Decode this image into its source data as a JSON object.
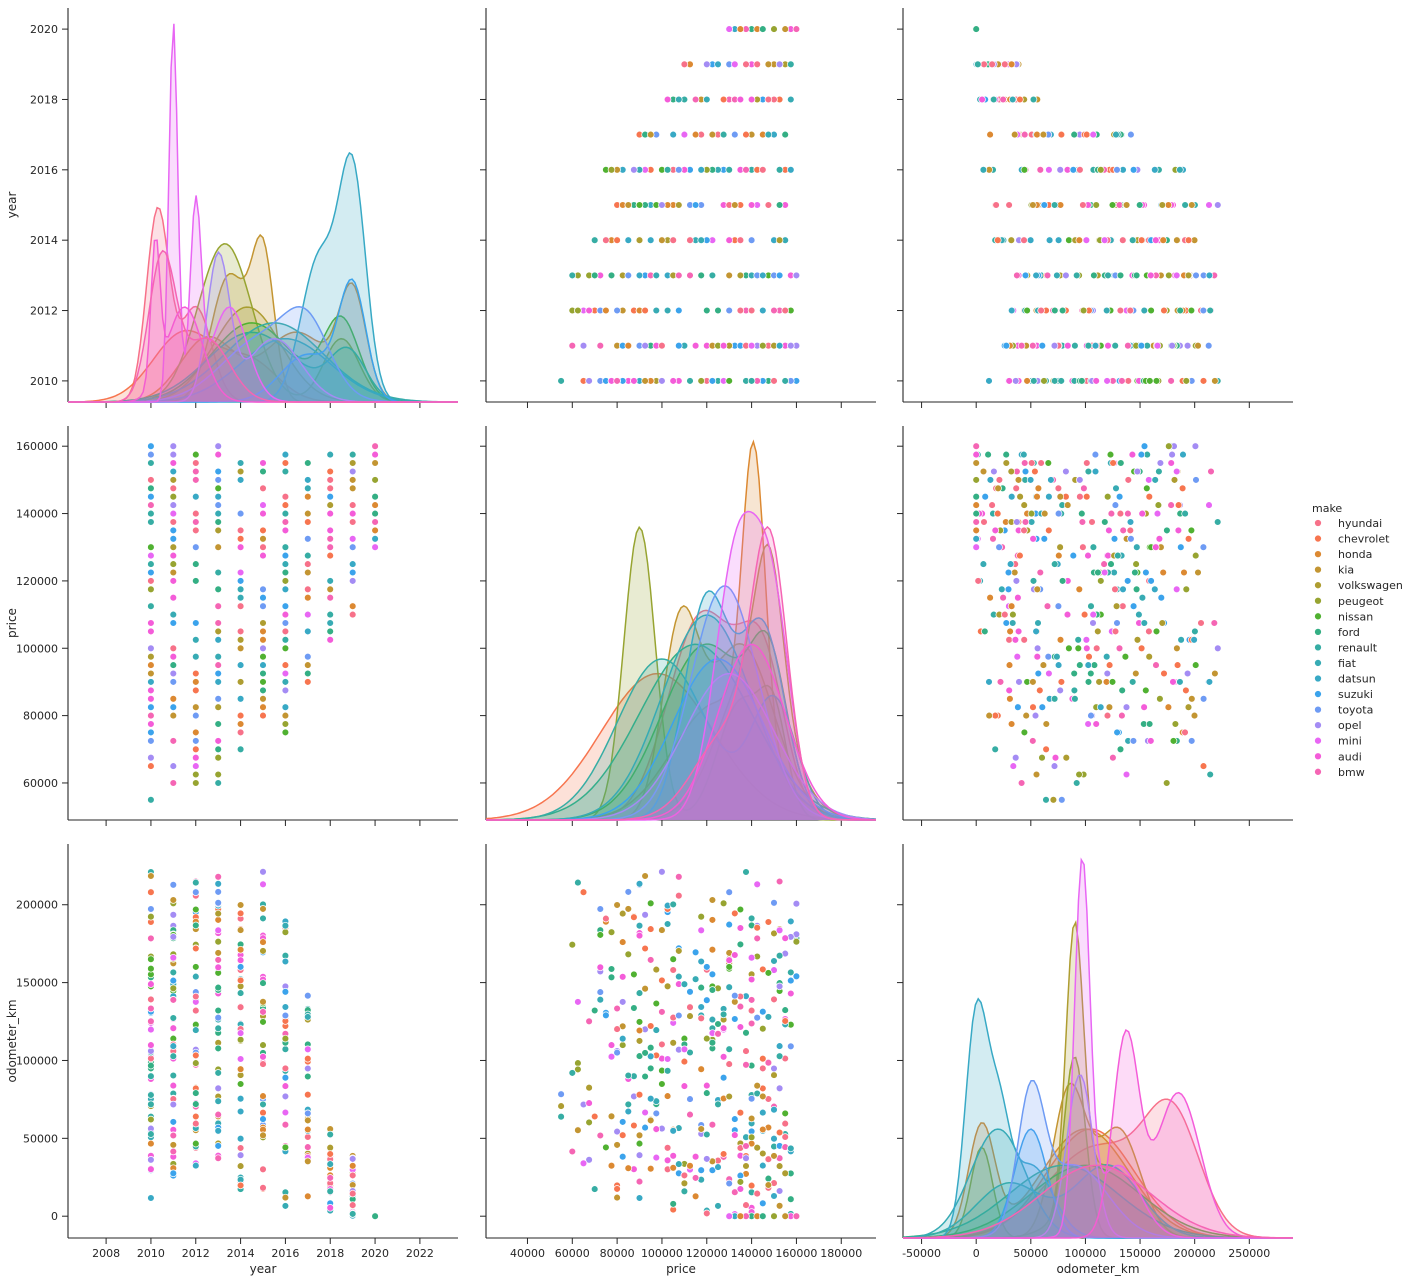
{
  "chart_data": {
    "type": "pairplot",
    "variables": [
      "year",
      "price",
      "odometer_km"
    ],
    "axis_labels": {
      "year": "year",
      "price": "price",
      "odometer_km": "odometer_km"
    },
    "axes": {
      "year": {
        "range": [
          2006.3,
          2023.7
        ],
        "diag_ticks": [
          2008,
          2010,
          2012,
          2014,
          2016,
          2018,
          2020,
          2022
        ],
        "y_ticks": [
          2010,
          2012,
          2014,
          2016,
          2018,
          2020
        ],
        "y_range": [
          2009.4,
          2020.6
        ]
      },
      "price": {
        "range": [
          21500,
          195500
        ],
        "ticks": [
          40000,
          60000,
          80000,
          100000,
          120000,
          140000,
          160000,
          180000
        ],
        "y_ticks": [
          60000,
          80000,
          100000,
          120000,
          140000,
          160000
        ],
        "y_range": [
          49000,
          166000
        ]
      },
      "odometer_km": {
        "range": [
          -67000,
          290000
        ],
        "ticks": [
          -50000,
          0,
          50000,
          100000,
          150000,
          200000,
          250000
        ],
        "y_ticks": [
          0,
          50000,
          100000,
          150000,
          200000
        ],
        "y_range": [
          -14000,
          239000
        ]
      }
    },
    "legend": {
      "title": "make",
      "placement": "right",
      "entries": [
        {
          "name": "hyundai",
          "color": "#f77189"
        },
        {
          "name": "chevrolet",
          "color": "#f7754f"
        },
        {
          "name": "honda",
          "color": "#dc8932"
        },
        {
          "name": "kia",
          "color": "#c39532"
        },
        {
          "name": "volkswagen",
          "color": "#ae9d31"
        },
        {
          "name": "peugeot",
          "color": "#97a431"
        },
        {
          "name": "nissan",
          "color": "#50b131"
        },
        {
          "name": "ford",
          "color": "#34af84"
        },
        {
          "name": "renault",
          "color": "#36ada4"
        },
        {
          "name": "fiat",
          "color": "#37abb4"
        },
        {
          "name": "datsun",
          "color": "#38a9c5"
        },
        {
          "name": "suzuki",
          "color": "#3ba3ec"
        },
        {
          "name": "toyota",
          "color": "#6e9bf4"
        },
        {
          "name": "opel",
          "color": "#a48cf4"
        },
        {
          "name": "mini",
          "color": "#e866f4"
        },
        {
          "name": "audi",
          "color": "#f45cd9"
        },
        {
          "name": "bmw",
          "color": "#f565b4"
        }
      ]
    },
    "kde_year": [
      {
        "make": "hyundai",
        "peaks": [
          [
            2010.3,
            0.6,
            0.5
          ],
          [
            2012.0,
            0.3,
            0.7
          ]
        ]
      },
      {
        "make": "chevrolet",
        "peaks": [
          [
            2011.5,
            0.22,
            1.4
          ],
          [
            2014.5,
            0.12,
            1.2
          ]
        ]
      },
      {
        "make": "honda",
        "peaks": [
          [
            2012.5,
            0.2,
            1.2
          ],
          [
            2016.5,
            0.22,
            1.5
          ],
          [
            2019.0,
            0.32,
            0.6
          ]
        ]
      },
      {
        "make": "kia",
        "peaks": [
          [
            2013.5,
            0.4,
            0.8
          ],
          [
            2015.0,
            0.45,
            0.5
          ]
        ]
      },
      {
        "make": "volkswagen",
        "peaks": [
          [
            2014.3,
            0.3,
            1.5
          ]
        ]
      },
      {
        "make": "peugeot",
        "peaks": [
          [
            2013.3,
            0.5,
            1.2
          ],
          [
            2018.5,
            0.2,
            0.8
          ]
        ]
      },
      {
        "make": "nissan",
        "peaks": [
          [
            2014.5,
            0.25,
            1.8
          ],
          [
            2018.5,
            0.25,
            0.8
          ]
        ]
      },
      {
        "make": "ford",
        "peaks": [
          [
            2014.5,
            0.22,
            2.0
          ],
          [
            2018.8,
            0.15,
            0.8
          ]
        ]
      },
      {
        "make": "renault",
        "peaks": [
          [
            2015.5,
            0.25,
            2.2
          ]
        ]
      },
      {
        "make": "fiat",
        "peaks": [
          [
            2016.0,
            0.2,
            2.0
          ]
        ]
      },
      {
        "make": "datsun",
        "peaks": [
          [
            2017.5,
            0.45,
            0.8
          ],
          [
            2019.0,
            0.7,
            0.6
          ]
        ]
      },
      {
        "make": "suzuki",
        "peaks": [
          [
            2017.0,
            0.15,
            1.2
          ],
          [
            2019.0,
            0.35,
            0.6
          ]
        ]
      },
      {
        "make": "toyota",
        "peaks": [
          [
            2015.0,
            0.2,
            1.8
          ],
          [
            2017.0,
            0.18,
            1.0
          ]
        ]
      },
      {
        "make": "opel",
        "peaks": [
          [
            2013.0,
            0.45,
            0.5
          ],
          [
            2015.5,
            0.2,
            1.2
          ]
        ]
      },
      {
        "make": "mini",
        "peaks": [
          [
            2011.0,
            1.2,
            0.2
          ],
          [
            2012.0,
            0.6,
            0.25
          ],
          [
            2013.5,
            0.3,
            0.8
          ]
        ]
      },
      {
        "make": "audi",
        "peaks": [
          [
            2010.2,
            0.45,
            0.2
          ],
          [
            2011.5,
            0.3,
            0.8
          ]
        ]
      },
      {
        "make": "bmw",
        "peaks": [
          [
            2010.5,
            0.45,
            0.6
          ],
          [
            2012.5,
            0.2,
            1.0
          ]
        ]
      }
    ],
    "kde_price": [
      {
        "make": "hyundai",
        "peaks": [
          [
            118000,
            0.7,
            15000
          ],
          [
            145000,
            0.5,
            10000
          ]
        ]
      },
      {
        "make": "chevrolet",
        "peaks": [
          [
            98000,
            0.5,
            25000
          ]
        ]
      },
      {
        "make": "honda",
        "peaks": [
          [
            125000,
            0.4,
            20000
          ],
          [
            141000,
            1.0,
            5000
          ]
        ]
      },
      {
        "make": "kia",
        "peaks": [
          [
            108000,
            0.6,
            8000
          ],
          [
            135000,
            0.6,
            15000
          ]
        ]
      },
      {
        "make": "volkswagen",
        "peaks": [
          [
            140000,
            0.5,
            15000
          ],
          [
            148000,
            0.5,
            6000
          ]
        ]
      },
      {
        "make": "peugeot",
        "peaks": [
          [
            90000,
            1.0,
            7000
          ],
          [
            135000,
            0.4,
            10000
          ],
          [
            150000,
            0.3,
            6000
          ]
        ]
      },
      {
        "make": "nissan",
        "peaks": [
          [
            120000,
            0.6,
            20000
          ],
          [
            148000,
            0.4,
            8000
          ]
        ]
      },
      {
        "make": "ford",
        "peaks": [
          [
            115000,
            0.6,
            25000
          ]
        ]
      },
      {
        "make": "renault",
        "peaks": [
          [
            100000,
            0.55,
            20000
          ],
          [
            150000,
            0.4,
            10000
          ]
        ]
      },
      {
        "make": "fiat",
        "peaks": [
          [
            120000,
            0.7,
            20000
          ]
        ]
      },
      {
        "make": "datsun",
        "peaks": [
          [
            120000,
            0.75,
            10000
          ],
          [
            145000,
            0.65,
            10000
          ]
        ]
      },
      {
        "make": "suzuki",
        "peaks": [
          [
            125000,
            0.55,
            20000
          ]
        ]
      },
      {
        "make": "toyota",
        "peaks": [
          [
            128000,
            0.8,
            15000
          ]
        ]
      },
      {
        "make": "opel",
        "peaks": [
          [
            130000,
            0.5,
            20000
          ]
        ]
      },
      {
        "make": "mini",
        "peaks": [
          [
            134000,
            0.93,
            10000
          ],
          [
            150000,
            0.6,
            8000
          ]
        ]
      },
      {
        "make": "audi",
        "peaks": [
          [
            140000,
            0.6,
            15000
          ]
        ]
      },
      {
        "make": "bmw",
        "peaks": [
          [
            148000,
            0.85,
            8000
          ],
          [
            130000,
            0.3,
            15000
          ]
        ]
      }
    ],
    "kde_odometer_km": [
      {
        "make": "hyundai",
        "peaks": [
          [
            110000,
            0.25,
            45000
          ],
          [
            180000,
            0.3,
            25000
          ]
        ]
      },
      {
        "make": "chevrolet",
        "peaks": [
          [
            105000,
            0.3,
            40000
          ]
        ]
      },
      {
        "make": "honda",
        "peaks": [
          [
            5000,
            0.3,
            12000
          ],
          [
            100000,
            0.3,
            40000
          ]
        ]
      },
      {
        "make": "kia",
        "peaks": [
          [
            85000,
            0.4,
            15000
          ],
          [
            130000,
            0.3,
            20000
          ]
        ]
      },
      {
        "make": "volkswagen",
        "peaks": [
          [
            90000,
            0.75,
            8000
          ],
          [
            120000,
            0.2,
            30000
          ]
        ]
      },
      {
        "make": "peugeot",
        "peaks": [
          [
            5000,
            0.25,
            10000
          ],
          [
            90000,
            0.5,
            10000
          ]
        ]
      },
      {
        "make": "nissan",
        "peaks": [
          [
            100000,
            0.2,
            50000
          ]
        ]
      },
      {
        "make": "ford",
        "peaks": [
          [
            80000,
            0.2,
            50000
          ]
        ]
      },
      {
        "make": "renault",
        "peaks": [
          [
            30000,
            0.15,
            30000
          ],
          [
            120000,
            0.2,
            30000
          ]
        ]
      },
      {
        "make": "fiat",
        "peaks": [
          [
            20000,
            0.3,
            25000
          ]
        ]
      },
      {
        "make": "datsun",
        "peaks": [
          [
            0,
            0.6,
            10000
          ],
          [
            20000,
            0.3,
            10000
          ],
          [
            50000,
            0.2,
            20000
          ]
        ]
      },
      {
        "make": "suzuki",
        "peaks": [
          [
            50000,
            0.3,
            15000
          ]
        ]
      },
      {
        "make": "toyota",
        "peaks": [
          [
            50000,
            0.35,
            12000
          ],
          [
            90000,
            0.2,
            30000
          ]
        ]
      },
      {
        "make": "opel",
        "peaks": [
          [
            95000,
            0.45,
            12000
          ]
        ]
      },
      {
        "make": "mini",
        "peaks": [
          [
            97000,
            1.0,
            7000
          ],
          [
            130000,
            0.2,
            20000
          ]
        ]
      },
      {
        "make": "audi",
        "peaks": [
          [
            137000,
            0.55,
            12000
          ],
          [
            185000,
            0.4,
            20000
          ]
        ]
      },
      {
        "make": "bmw",
        "peaks": [
          [
            110000,
            0.2,
            50000
          ]
        ]
      }
    ],
    "scatter_year_price_max": [
      {
        "year": 2010,
        "price_min": 55000,
        "price_max": 160000
      },
      {
        "year": 2011,
        "price_min": 60000,
        "price_max": 160000
      },
      {
        "year": 2012,
        "price_min": 60000,
        "price_max": 160000
      },
      {
        "year": 2013,
        "price_min": 60000,
        "price_max": 160000
      },
      {
        "year": 2014,
        "price_min": 70000,
        "price_max": 160000
      },
      {
        "year": 2015,
        "price_min": 80000,
        "price_max": 160000
      },
      {
        "year": 2016,
        "price_min": 70000,
        "price_max": 160000
      },
      {
        "year": 2017,
        "price_min": 90000,
        "price_max": 160000
      },
      {
        "year": 2018,
        "price_min": 100000,
        "price_max": 160000
      },
      {
        "year": 2019,
        "price_min": 110000,
        "price_max": 160000
      },
      {
        "year": 2020,
        "price_min": 125000,
        "price_max": 160000
      }
    ],
    "scatter_year_odometer": [
      {
        "year": 2010,
        "km_min": 10000,
        "km_max": 222000
      },
      {
        "year": 2011,
        "km_min": 21000,
        "km_max": 222000
      },
      {
        "year": 2012,
        "km_min": 29000,
        "km_max": 222000
      },
      {
        "year": 2013,
        "km_min": 35000,
        "km_max": 220000
      },
      {
        "year": 2014,
        "km_min": 17000,
        "km_max": 215000
      },
      {
        "year": 2015,
        "km_min": 15000,
        "km_max": 222000
      },
      {
        "year": 2016,
        "km_min": 5000,
        "km_max": 197000
      },
      {
        "year": 2017,
        "km_min": 3000,
        "km_max": 147000
      },
      {
        "year": 2018,
        "km_min": 1000,
        "km_max": 58000
      },
      {
        "year": 2019,
        "km_min": 0,
        "km_max": 41000
      },
      {
        "year": 2020,
        "km_min": 0,
        "km_max": 0
      }
    ]
  }
}
